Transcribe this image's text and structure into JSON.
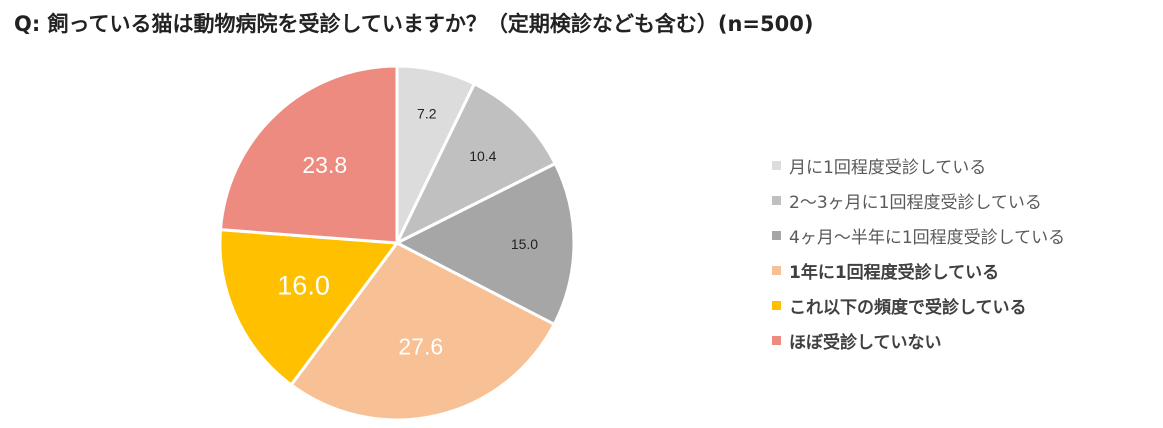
{
  "title": "Q: 飼っている猫は動物病院を受診していますか？（定期検診なども含む）(n=500)",
  "chart_data": {
    "type": "pie",
    "categories": [
      "月に1回程度受診している",
      "2〜3ヶ月に1回程度受診している",
      "4ヶ月〜半年に1回程度受診している",
      "1年に1回程度受診している",
      "これ以下の頻度で受診している",
      "ほぼ受診していない"
    ],
    "values": [
      7.2,
      10.4,
      15.0,
      27.6,
      16.0,
      23.8
    ],
    "value_labels": [
      "7.2",
      "10.4",
      "15.0",
      "27.6",
      "16.0",
      "23.8"
    ],
    "colors": [
      "#DCDCDC",
      "#C0C0C0",
      "#A6A6A6",
      "#F8C195",
      "#FFC000",
      "#ED8B80"
    ],
    "label_colors": [
      "#222222",
      "#222222",
      "#222222",
      "#FFFFFF",
      "#FFFFFF",
      "#FFFFFF"
    ],
    "legend_position": "right",
    "legend_bold": [
      false,
      false,
      false,
      true,
      true,
      true
    ]
  }
}
